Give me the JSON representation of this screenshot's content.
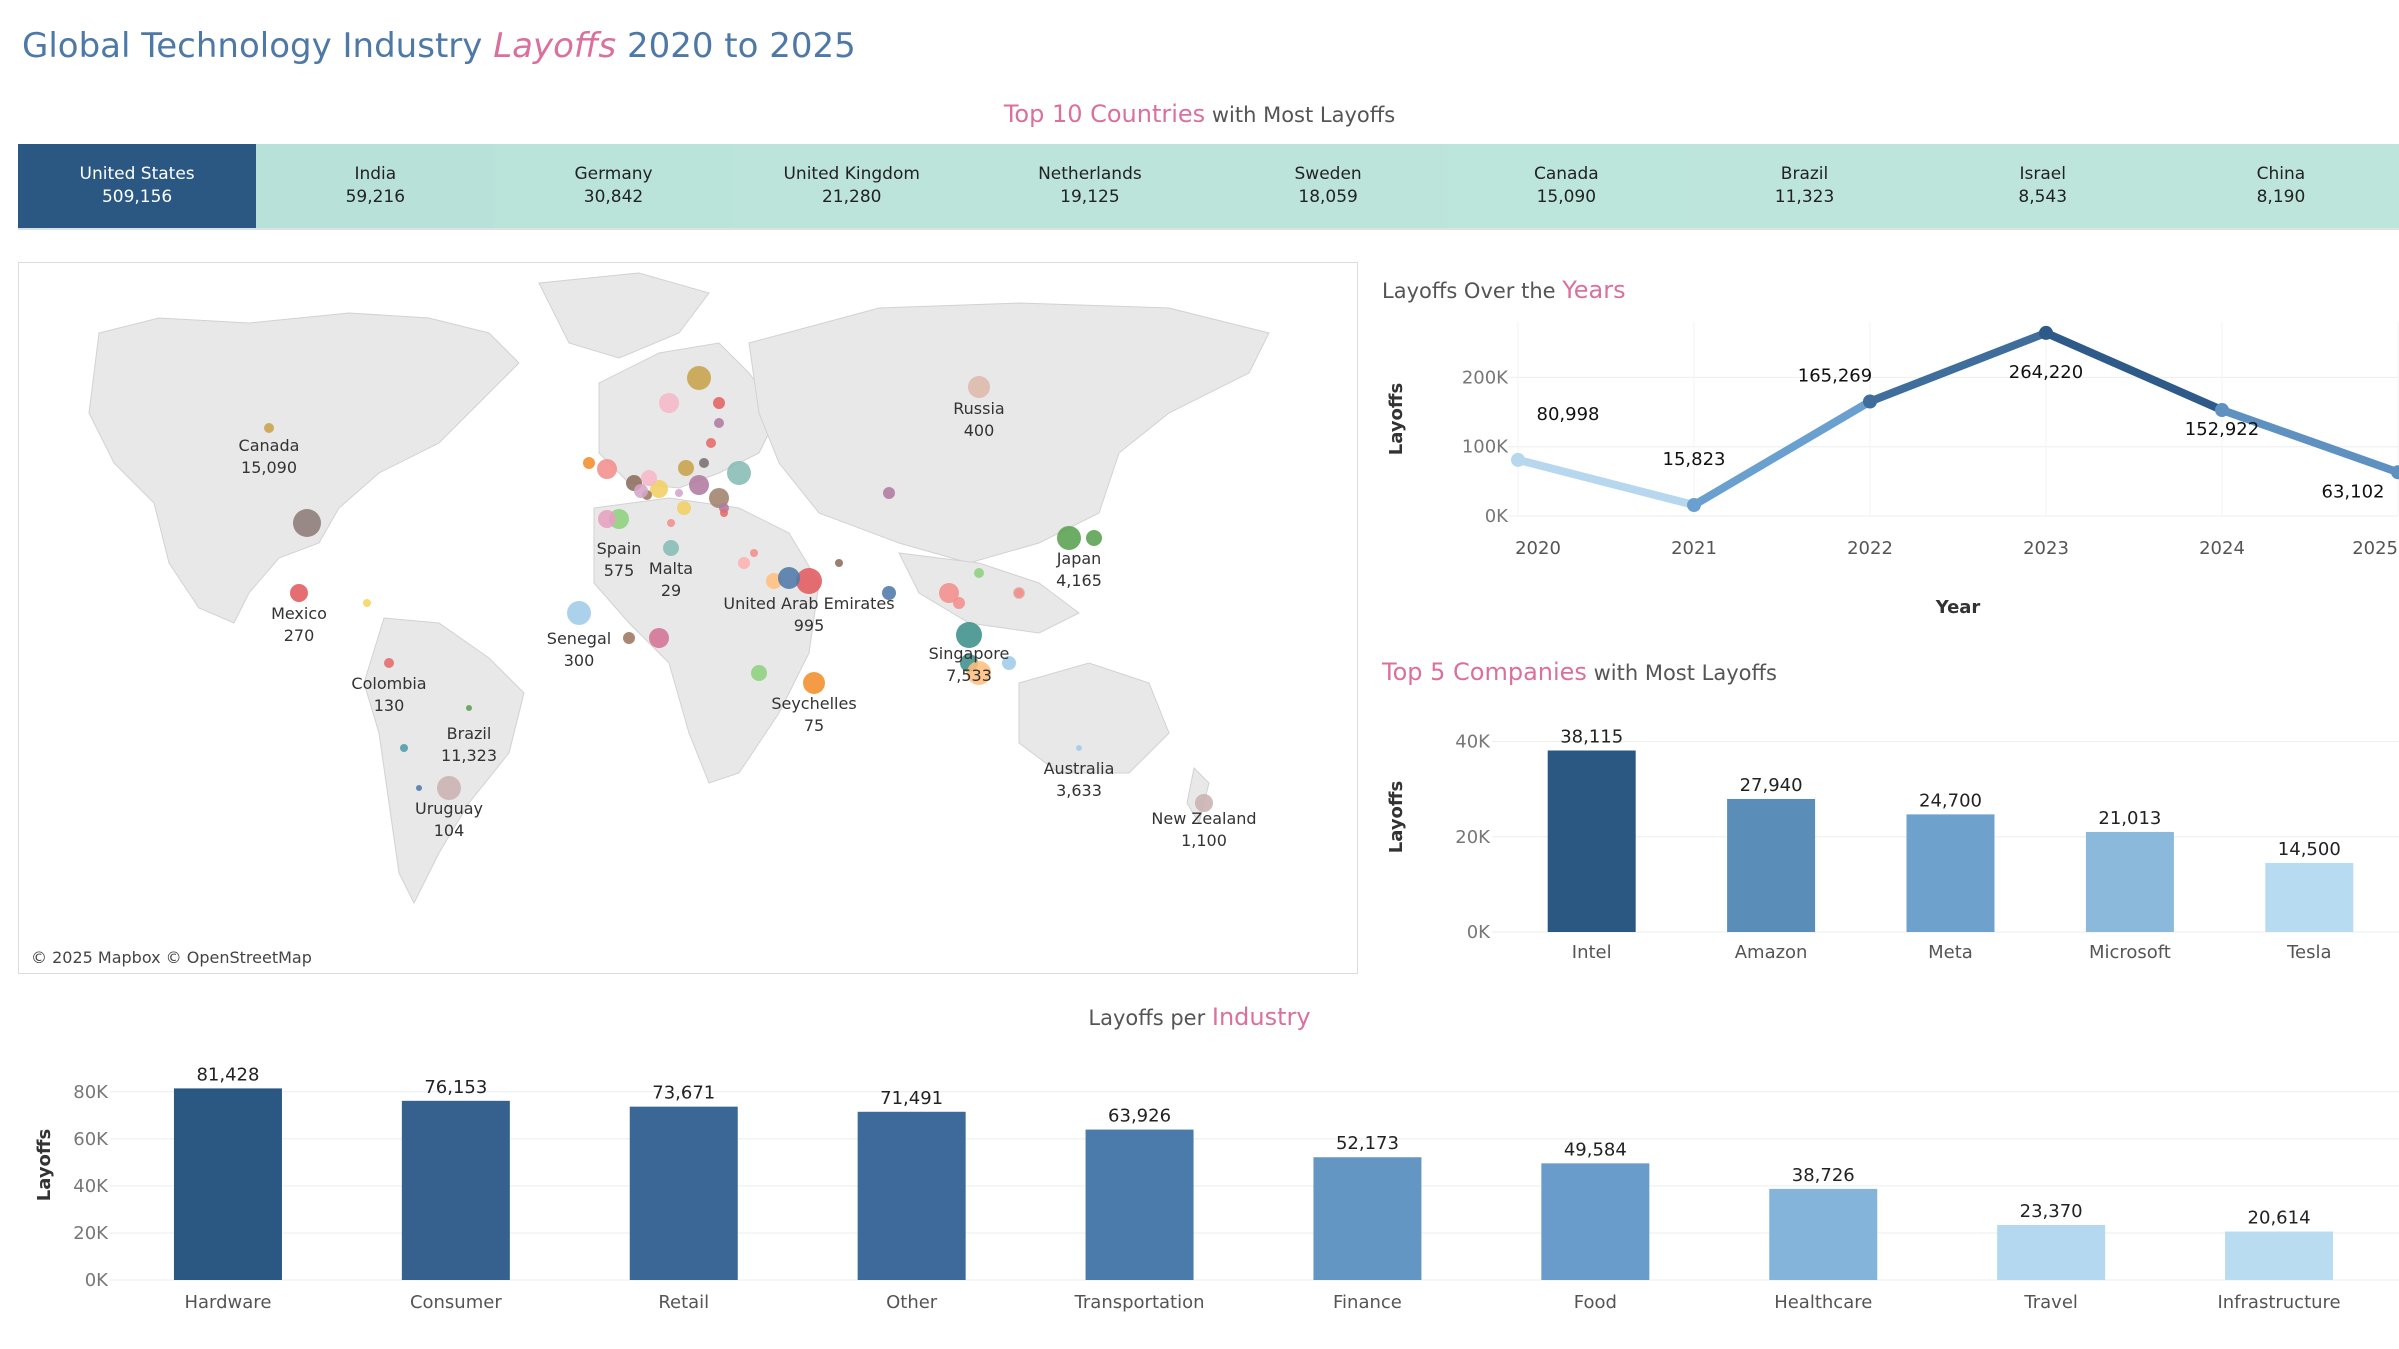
{
  "header": {
    "title_pre": "Global Technology Industry ",
    "title_accent": "Layoffs",
    "title_post": " 2020 to 2025"
  },
  "countries_section": {
    "accent": "Top 10 Countries",
    "rest": " with Most Layoffs"
  },
  "years_section": {
    "pre": "Layoffs Over the ",
    "accent": "Years"
  },
  "companies_section": {
    "accent": "Top 5 Companies",
    "rest": " with Most Layoffs"
  },
  "industry_section": {
    "pre": "Layoffs per ",
    "accent": "Industry"
  },
  "colors": {
    "accent": "#d9709d",
    "title": "#4e79a7",
    "dark_blue": "#2b5783",
    "light_teal": "#b9e3d9"
  },
  "map": {
    "credit": "© 2025 Mapbox © OpenStreetMap",
    "labels": [
      {
        "name": "Canada",
        "value": "15,090"
      },
      {
        "name": "Mexico",
        "value": "270"
      },
      {
        "name": "Colombia",
        "value": "130"
      },
      {
        "name": "Brazil",
        "value": "11,323"
      },
      {
        "name": "Uruguay",
        "value": "104"
      },
      {
        "name": "Spain",
        "value": "575"
      },
      {
        "name": "Malta",
        "value": "29"
      },
      {
        "name": "Senegal",
        "value": "300"
      },
      {
        "name": "United Arab Emirates",
        "value": "995"
      },
      {
        "name": "Seychelles",
        "value": "75"
      },
      {
        "name": "Russia",
        "value": "400"
      },
      {
        "name": "Japan",
        "value": "4,165"
      },
      {
        "name": "Singapore",
        "value": "7,533"
      },
      {
        "name": "Australia",
        "value": "3,633"
      },
      {
        "name": "New Zealand",
        "value": "1,100"
      }
    ]
  },
  "chart_data": [
    {
      "type": "table",
      "title": "Top 10 Countries with Most Layoffs",
      "categories": [
        "United States",
        "India",
        "Germany",
        "United Kingdom",
        "Netherlands",
        "Sweden",
        "Canada",
        "Brazil",
        "Israel",
        "China"
      ],
      "labels": [
        "509,156",
        "59,216",
        "30,842",
        "21,280",
        "19,125",
        "18,059",
        "15,090",
        "11,323",
        "8,543",
        "8,190"
      ],
      "values": [
        509156,
        59216,
        30842,
        21280,
        19125,
        18059,
        15090,
        11323,
        8543,
        8190
      ]
    },
    {
      "type": "line",
      "title": "Layoffs Over the Years",
      "xlabel": "Year",
      "ylabel": "Layoffs",
      "x": [
        "2020",
        "2021",
        "2022",
        "2023",
        "2024",
        "2025"
      ],
      "values": [
        80998,
        15823,
        165269,
        264220,
        152922,
        63102
      ],
      "labels": [
        "80,998",
        "15,823",
        "165,269",
        "264,220",
        "152,922",
        "63,102"
      ],
      "yticks": [
        "0K",
        "100K",
        "200K"
      ],
      "ylim": [
        0,
        280000
      ]
    },
    {
      "type": "bar",
      "title": "Top 5 Companies with Most Layoffs",
      "ylabel": "Layoffs",
      "categories": [
        "Intel",
        "Amazon",
        "Meta",
        "Microsoft",
        "Tesla"
      ],
      "values": [
        38115,
        27940,
        24700,
        21013,
        14500
      ],
      "labels": [
        "38,115",
        "27,940",
        "24,700",
        "21,013",
        "14,500"
      ],
      "yticks": [
        "0K",
        "20K",
        "40K"
      ],
      "ylim": [
        0,
        42000
      ]
    },
    {
      "type": "bar",
      "title": "Layoffs per Industry",
      "ylabel": "Layoffs",
      "categories": [
        "Hardware",
        "Consumer",
        "Retail",
        "Other",
        "Transportation",
        "Finance",
        "Food",
        "Healthcare",
        "Travel",
        "Infrastructure"
      ],
      "values": [
        81428,
        76153,
        73671,
        71491,
        63926,
        52173,
        49584,
        38726,
        23370,
        20614
      ],
      "labels": [
        "81,428",
        "76,153",
        "73,671",
        "71,491",
        "63,926",
        "52,173",
        "49,584",
        "38,726",
        "23,370",
        "20,614"
      ],
      "yticks": [
        "0K",
        "20K",
        "40K",
        "60K",
        "80K"
      ],
      "ylim": [
        0,
        85000
      ]
    }
  ]
}
